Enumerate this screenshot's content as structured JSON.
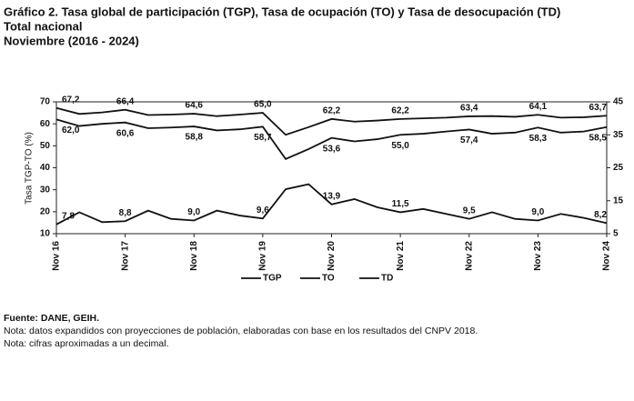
{
  "chart_data": {
    "type": "line",
    "title": "Gráfico 2. Tasa global de participación (TGP), Tasa de ocupación (TO) y Tasa de desocupación (TD)",
    "subtitle": "Total nacional",
    "period": "Noviembre (2016 - 2024)",
    "y_label": "Tasa TGP-TO (%)",
    "categories": [
      "Nov 16",
      null,
      null,
      "Nov 17",
      null,
      null,
      "Nov 18",
      null,
      null,
      "Nov 19",
      null,
      null,
      "Nov 20",
      null,
      null,
      "Nov 21",
      null,
      null,
      "Nov 22",
      null,
      null,
      "Nov 23",
      null,
      null,
      "Nov 24"
    ],
    "ylim": [
      10,
      70
    ],
    "yticks": [
      10,
      20,
      30,
      40,
      50,
      60,
      70
    ],
    "y2lim": [
      5,
      45
    ],
    "y2ticks": [
      5,
      15,
      25,
      35,
      45
    ],
    "series": [
      {
        "name": "TGP",
        "color": "#111111",
        "values": [
          67.2,
          64.5,
          65.2,
          66.4,
          64.0,
          64.2,
          64.6,
          63.5,
          64.2,
          65.0,
          55.0,
          58.5,
          62.2,
          61.0,
          61.5,
          62.2,
          62.5,
          62.8,
          63.4,
          63.5,
          63.2,
          64.1,
          62.8,
          63.0,
          63.7
        ],
        "value_labels": [
          "67,2",
          null,
          null,
          "66,4",
          null,
          null,
          "64,6",
          null,
          null,
          "65,0",
          null,
          null,
          "62,2",
          null,
          null,
          "62,2",
          null,
          null,
          "63,4",
          null,
          null,
          "64,1",
          null,
          null,
          "63,7"
        ]
      },
      {
        "name": "TO",
        "color": "#111111",
        "values": [
          62.0,
          59.0,
          60.0,
          60.6,
          58.0,
          58.3,
          58.8,
          57.0,
          57.5,
          58.7,
          44.0,
          48.5,
          53.6,
          52.0,
          53.0,
          55.0,
          55.5,
          56.5,
          57.4,
          55.5,
          56.0,
          58.3,
          56.0,
          56.5,
          58.5
        ],
        "value_labels": [
          "62,0",
          null,
          null,
          "60,6",
          null,
          null,
          "58,8",
          null,
          null,
          "58,7",
          null,
          null,
          "53,6",
          null,
          null,
          "55,0",
          null,
          null,
          "57,4",
          null,
          null,
          "58,3",
          null,
          null,
          "58,5"
        ]
      },
      {
        "name": "TD",
        "color": "#111111",
        "axis": "y2",
        "values": [
          7.8,
          11.5,
          8.5,
          8.8,
          12.0,
          9.5,
          9.0,
          12.0,
          10.5,
          9.6,
          18.5,
          20.0,
          13.9,
          15.5,
          13.0,
          11.5,
          12.5,
          11.0,
          9.5,
          11.5,
          9.5,
          9.0,
          11.0,
          9.8,
          8.2
        ],
        "value_labels": [
          "7,8",
          null,
          null,
          "8,8",
          null,
          null,
          "9,0",
          null,
          null,
          "9,6",
          null,
          null,
          "13,9",
          null,
          null,
          "11,5",
          null,
          null,
          "9,5",
          null,
          null,
          "9,0",
          null,
          null,
          "8,2"
        ]
      }
    ],
    "footnotes": [
      "Fuente: DANE, GEIH.",
      "Nota: datos expandidos con proyecciones de población, elaboradas con base en los resultados del CNPV 2018.",
      "Nota: cifras aproximadas a un decimal."
    ]
  }
}
